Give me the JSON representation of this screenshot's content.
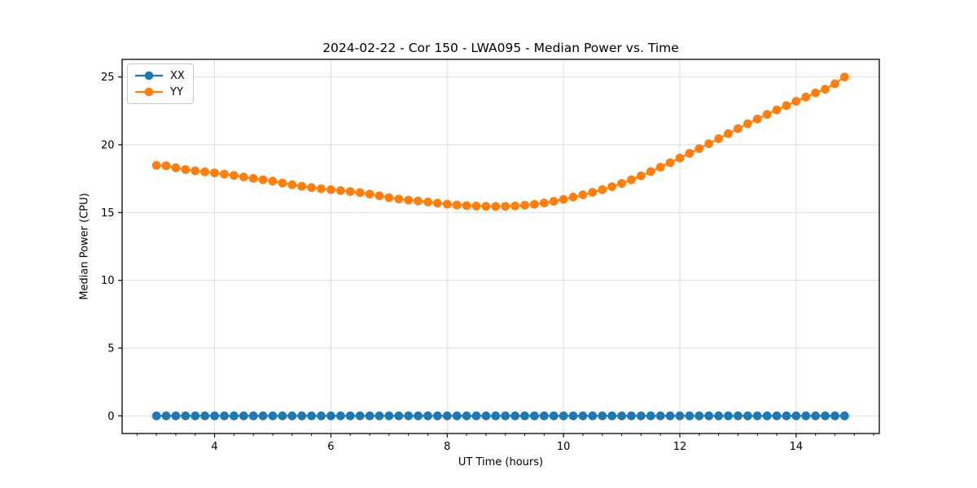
{
  "figure": {
    "title": "2024-02-22 - Cor 150 - LWA095 - Median Power vs. Time",
    "xlabel": "UT Time (hours)",
    "ylabel": "Median Power (CPU)"
  },
  "legend": {
    "position": "upper left",
    "items": [
      {
        "label": "XX",
        "color": "#1f77b4"
      },
      {
        "label": "YY",
        "color": "#ff7f0e"
      }
    ]
  },
  "chart_data": {
    "type": "line",
    "title": "2024-02-22 - Cor 150 - LWA095 - Median Power vs. Time",
    "xlabel": "UT Time (hours)",
    "ylabel": "Median Power (CPU)",
    "grid": true,
    "legend_position": "upper left",
    "marker": "o",
    "xlim": [
      2.41,
      15.43
    ],
    "ylim": [
      -1.3,
      26.3
    ],
    "xticks": [
      4,
      6,
      8,
      10,
      12,
      14
    ],
    "yticks": [
      0,
      5,
      10,
      15,
      20,
      25
    ],
    "x_minor_step": 0.333333,
    "x": [
      3.0,
      3.167,
      3.333,
      3.5,
      3.667,
      3.833,
      4.0,
      4.167,
      4.333,
      4.5,
      4.667,
      4.833,
      5.0,
      5.167,
      5.333,
      5.5,
      5.667,
      5.833,
      6.0,
      6.167,
      6.333,
      6.5,
      6.667,
      6.833,
      7.0,
      7.167,
      7.333,
      7.5,
      7.667,
      7.833,
      8.0,
      8.167,
      8.333,
      8.5,
      8.667,
      8.833,
      9.0,
      9.167,
      9.333,
      9.5,
      9.667,
      9.833,
      10.0,
      10.167,
      10.333,
      10.5,
      10.667,
      10.833,
      11.0,
      11.167,
      11.333,
      11.5,
      11.667,
      11.833,
      12.0,
      12.167,
      12.333,
      12.5,
      12.667,
      12.833,
      13.0,
      13.167,
      13.333,
      13.5,
      13.667,
      13.833,
      14.0,
      14.167,
      14.333,
      14.5,
      14.667,
      14.833
    ],
    "series": [
      {
        "name": "XX",
        "color": "#1f77b4",
        "values": [
          0,
          0,
          0,
          0,
          0,
          0,
          0,
          0,
          0,
          0,
          0,
          0,
          0,
          0,
          0,
          0,
          0,
          0,
          0,
          0,
          0,
          0,
          0,
          0,
          0,
          0,
          0,
          0,
          0,
          0,
          0,
          0,
          0,
          0,
          0,
          0,
          0,
          0,
          0,
          0,
          0,
          0,
          0,
          0,
          0,
          0,
          0,
          0,
          0,
          0,
          0,
          0,
          0,
          0,
          0,
          0,
          0,
          0,
          0,
          0,
          0,
          0,
          0,
          0,
          0,
          0,
          0,
          0,
          0,
          0,
          0,
          0
        ]
      },
      {
        "name": "YY",
        "color": "#ff7f0e",
        "values": [
          18.48,
          18.45,
          18.3,
          18.17,
          18.08,
          18.0,
          17.93,
          17.84,
          17.74,
          17.63,
          17.52,
          17.42,
          17.32,
          17.18,
          17.05,
          16.94,
          16.84,
          16.76,
          16.69,
          16.62,
          16.55,
          16.47,
          16.36,
          16.24,
          16.1,
          16.0,
          15.92,
          15.85,
          15.78,
          15.7,
          15.62,
          15.56,
          15.51,
          15.48,
          15.46,
          15.45,
          15.46,
          15.49,
          15.54,
          15.61,
          15.71,
          15.83,
          15.97,
          16.14,
          16.31,
          16.49,
          16.69,
          16.91,
          17.15,
          17.42,
          17.71,
          18.02,
          18.35,
          18.68,
          19.02,
          19.37,
          19.72,
          20.08,
          20.45,
          20.82,
          21.19,
          21.55,
          21.9,
          22.24,
          22.57,
          22.89,
          23.21,
          23.52,
          23.83,
          24.1,
          24.5,
          25.0
        ]
      }
    ],
    "colors": {
      "grid": "#dedede",
      "spine": "#000000",
      "background": "#ffffff"
    }
  }
}
